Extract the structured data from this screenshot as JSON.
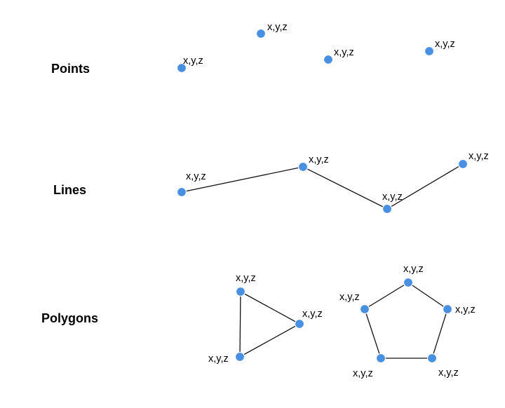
{
  "colors": {
    "vertex": "#4a90e2",
    "edge": "#111111",
    "background": "#ffffff"
  },
  "sections": {
    "points": {
      "title": "Points",
      "vertices": [
        {
          "label": "x,y,z"
        },
        {
          "label": "x,y,z"
        },
        {
          "label": "x,y,z"
        },
        {
          "label": "x,y,z"
        }
      ]
    },
    "lines": {
      "title": "Lines",
      "vertices": [
        {
          "label": "x,y,z"
        },
        {
          "label": "x,y,z"
        },
        {
          "label": "x,y,z"
        },
        {
          "label": "x,y,z"
        }
      ]
    },
    "polygons": {
      "title": "Polygons",
      "triangle": {
        "vertices": [
          {
            "label": "x,y,z"
          },
          {
            "label": "x,y,z"
          },
          {
            "label": "x,y,z"
          }
        ]
      },
      "pentagon": {
        "vertices": [
          {
            "label": "x,y,z"
          },
          {
            "label": "x,y,z"
          },
          {
            "label": "x,y,z"
          },
          {
            "label": "x,y,z"
          },
          {
            "label": "x,y,z"
          }
        ]
      }
    }
  }
}
